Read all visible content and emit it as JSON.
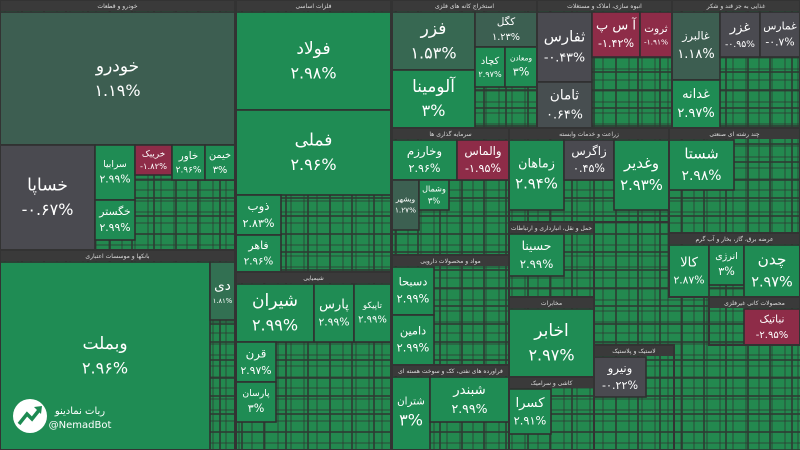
{
  "chart_data": {
    "type": "treemap",
    "sectors": [
      {
        "name": "خودرو و قطعات",
        "tiles": [
          {
            "name": "خودرو",
            "value": 1.19,
            "value_label": "۱.۱۹%"
          },
          {
            "name": "خساپا",
            "value": -0.67,
            "value_label": "-۰.۶۷%"
          },
          {
            "name": "سرابیا",
            "value": 2.99,
            "value_label": "۲.۹۹%"
          },
          {
            "name": "خریبک",
            "value": -1.82,
            "value_label": "-۱.۸۲%"
          },
          {
            "name": "خاور",
            "value": 2.96,
            "value_label": "۲.۹۶%"
          },
          {
            "name": "خیمن",
            "value": 3,
            "value_label": "۳%"
          },
          {
            "name": "خگستر",
            "value": 2.99,
            "value_label": "۲.۹۹%"
          }
        ]
      },
      {
        "name": "بانکها و موسسات اعتباری",
        "tiles": [
          {
            "name": "وبملت",
            "value": 2.96,
            "value_label": "۲.۹۶%"
          },
          {
            "name": "دی",
            "value": 1.81,
            "value_label": "۱.۸۱%"
          }
        ]
      },
      {
        "name": "فلزات اساسی",
        "tiles": [
          {
            "name": "فولاد",
            "value": 2.98,
            "value_label": "۲.۹۸%"
          },
          {
            "name": "فملی",
            "value": 2.96,
            "value_label": "۲.۹۶%"
          },
          {
            "name": "ذوب",
            "value": 2.83,
            "value_label": "۲.۸۳%"
          },
          {
            "name": "فاهر",
            "value": 2.96,
            "value_label": "۲.۹۶%"
          }
        ]
      },
      {
        "name": "شیمیایی",
        "tiles": [
          {
            "name": "شیران",
            "value": 2.99,
            "value_label": "۲.۹۹%"
          },
          {
            "name": "پارس",
            "value": 2.99,
            "value_label": "۲.۹۹%"
          },
          {
            "name": "تاپیکو",
            "value": 2.99,
            "value_label": "۲.۹۹%"
          },
          {
            "name": "قرن",
            "value": 2.97,
            "value_label": "۲.۹۷%"
          },
          {
            "name": "پارسان",
            "value": 3,
            "value_label": "۳%"
          }
        ]
      },
      {
        "name": "استخراج کانه های فلزی",
        "tiles": [
          {
            "name": "فزر",
            "value": 1.53,
            "value_label": "۱.۵۳%"
          },
          {
            "name": "آلومینا",
            "value": 3,
            "value_label": "۳%"
          },
          {
            "name": "کگل",
            "value": 1.23,
            "value_label": "۱.۲۳%"
          },
          {
            "name": "کچاد",
            "value": 2.97,
            "value_label": "۲.۹۷%"
          },
          {
            "name": "ومعادن",
            "value": 3,
            "value_label": "۳%"
          }
        ]
      },
      {
        "name": "انبوه سازی، املاک و مستغلات",
        "tiles": [
          {
            "name": "ثفارس",
            "value": -0.43,
            "value_label": "-۰.۴۳%"
          },
          {
            "name": "آ س پ",
            "value": -1.42,
            "value_label": "-۱.۴۲%"
          },
          {
            "name": "ثروت",
            "value": -1.91,
            "value_label": "-۱.۹۱%"
          },
          {
            "name": "ثامان",
            "value": 0.64,
            "value_label": "۰.۶۴%"
          }
        ]
      },
      {
        "name": "غذایی به جز قند و شکر",
        "tiles": [
          {
            "name": "غالبرز",
            "value": 1.18,
            "value_label": "۱.۱۸%"
          },
          {
            "name": "غزر",
            "value": -0.95,
            "value_label": "-۰.۹۵%"
          },
          {
            "name": "غمارس",
            "value": -0.7,
            "value_label": "-۰.۷%"
          },
          {
            "name": "غدانه",
            "value": 2.97,
            "value_label": "۲.۹۷%"
          }
        ]
      },
      {
        "name": "سرمایه گذاری ها",
        "tiles": [
          {
            "name": "وخارزم",
            "value": 2.96,
            "value_label": "۲.۹۶%"
          },
          {
            "name": "والماس",
            "value": -1.95,
            "value_label": "-۱.۹۵%"
          },
          {
            "name": "وبشهر",
            "value": 1.27,
            "value_label": "۱.۲۷%"
          },
          {
            "name": "وشمال",
            "value": 3,
            "value_label": "۳%"
          }
        ]
      },
      {
        "name": "زراعت و خدمات وابسته",
        "tiles": [
          {
            "name": "زماهان",
            "value": 2.94,
            "value_label": "۲.۹۴%"
          },
          {
            "name": "زاگرس",
            "value": 0.45,
            "value_label": "۰.۴۵%"
          },
          {
            "name": "وغدیر",
            "value": 2.93,
            "value_label": "۲.۹۳%"
          }
        ]
      },
      {
        "name": "چند رشته ای صنعتی",
        "tiles": [
          {
            "name": "شستا",
            "value": 2.98,
            "value_label": "۲.۹۸%"
          }
        ]
      },
      {
        "name": "مواد و محصولات دارویی",
        "tiles": [
          {
            "name": "دسبحا",
            "value": 2.99,
            "value_label": "۲.۹۹%"
          },
          {
            "name": "دامین",
            "value": 2.99,
            "value_label": "۲.۹۹%"
          }
        ]
      },
      {
        "name": "حمل و نقل، انبارداری و ارتباطات",
        "tiles": [
          {
            "name": "حسینا",
            "value": 2.99,
            "value_label": "۲.۹۹%"
          }
        ]
      },
      {
        "name": "عرضه برق، گاز، بخار و آب گرم",
        "tiles": [
          {
            "name": "کالا",
            "value": 2.87,
            "value_label": "۲.۸۷%"
          },
          {
            "name": "انرژی",
            "value": 3,
            "value_label": "۳%"
          },
          {
            "name": "چدن",
            "value": 2.97,
            "value_label": "۲.۹۷%"
          }
        ]
      },
      {
        "name": "مخابرات",
        "tiles": [
          {
            "name": "اخابر",
            "value": 2.97,
            "value_label": "۲.۹۷%"
          }
        ]
      },
      {
        "name": "محصولات کانی غیرفلزی",
        "tiles": [
          {
            "name": "نباتیک",
            "value": -2.95,
            "value_label": "-۲.۹۵%"
          }
        ]
      },
      {
        "name": "فراورده های نفتی، کک و سوخت هسته ای",
        "tiles": [
          {
            "name": "شتران",
            "value": 3,
            "value_label": "۳%"
          },
          {
            "name": "شبندر",
            "value": 2.99,
            "value_label": "۲.۹۹%"
          }
        ]
      },
      {
        "name": "کاشی و سرامیک",
        "tiles": [
          {
            "name": "کسرا",
            "value": 2.91,
            "value_label": "۲.۹۱%"
          }
        ]
      },
      {
        "name": "لاستیک و پلاستیک",
        "tiles": [
          {
            "name": "ونیرو",
            "value": -0.22,
            "value_label": "-۰.۲۲%"
          }
        ]
      }
    ]
  },
  "watermark": {
    "name": "ربات نمادینو",
    "handle": "@NemadBot"
  }
}
